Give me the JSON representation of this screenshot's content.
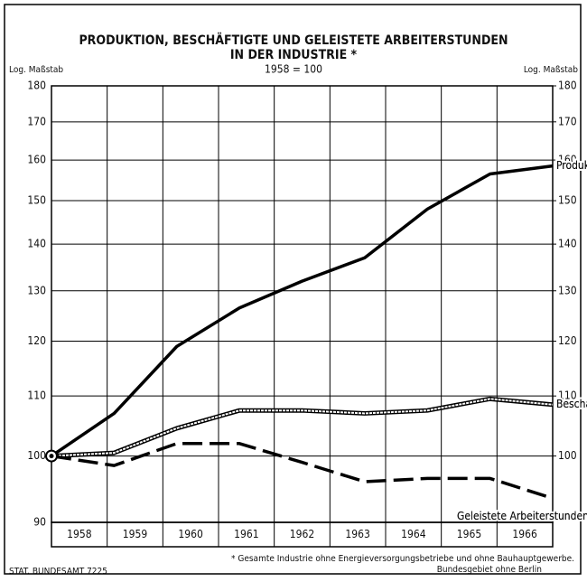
{
  "chart_data": {
    "type": "line",
    "title": "PRODUKTION, BESCHÄFTIGTE UND GELEISTETE ARBEITERSTUNDEN",
    "subtitle": "IN DER INDUSTRIE *",
    "base_note": "1958 = 100",
    "y_axis_label": "Log. Maßstab",
    "y2_axis_label": "Log. Maßstab",
    "log_scale": true,
    "grid": true,
    "categories": [
      "1958",
      "1959",
      "1960",
      "1961",
      "1962",
      "1963",
      "1964",
      "1965",
      "1966"
    ],
    "series": [
      {
        "name": "Produktionsindex",
        "color": "#000000",
        "style": "solid",
        "values": [
          100,
          107,
          119,
          126.5,
          132,
          137,
          148,
          156.5,
          158.5
        ]
      },
      {
        "name": "Beschäftigte",
        "color": "#000000",
        "style": "hollow",
        "values": [
          100,
          100.5,
          104.5,
          107.5,
          107.5,
          107,
          107.5,
          109.5,
          108.5
        ]
      },
      {
        "name": "Geleistete Arbeiterstunden",
        "color": "#000000",
        "style": "dashed",
        "values": [
          100,
          98.5,
          102,
          102,
          99,
          96,
          96.5,
          96.5,
          93.5
        ]
      }
    ],
    "ylim": [
      90,
      180
    ],
    "yticks": [
      90,
      100,
      110,
      120,
      130,
      140,
      150,
      160,
      170,
      180
    ],
    "y2lim": [
      90,
      180
    ],
    "y2ticks": [
      100,
      110,
      120,
      130,
      140,
      150,
      160,
      170,
      180
    ],
    "footnote": "* Gesamte Industrie ohne Energieversorgungsbetriebe und ohne Bauhauptgewerbe.",
    "footnote2": "Bundesgebiet ohne Berlin",
    "source": "STAT. BUNDESAMT 7225"
  }
}
